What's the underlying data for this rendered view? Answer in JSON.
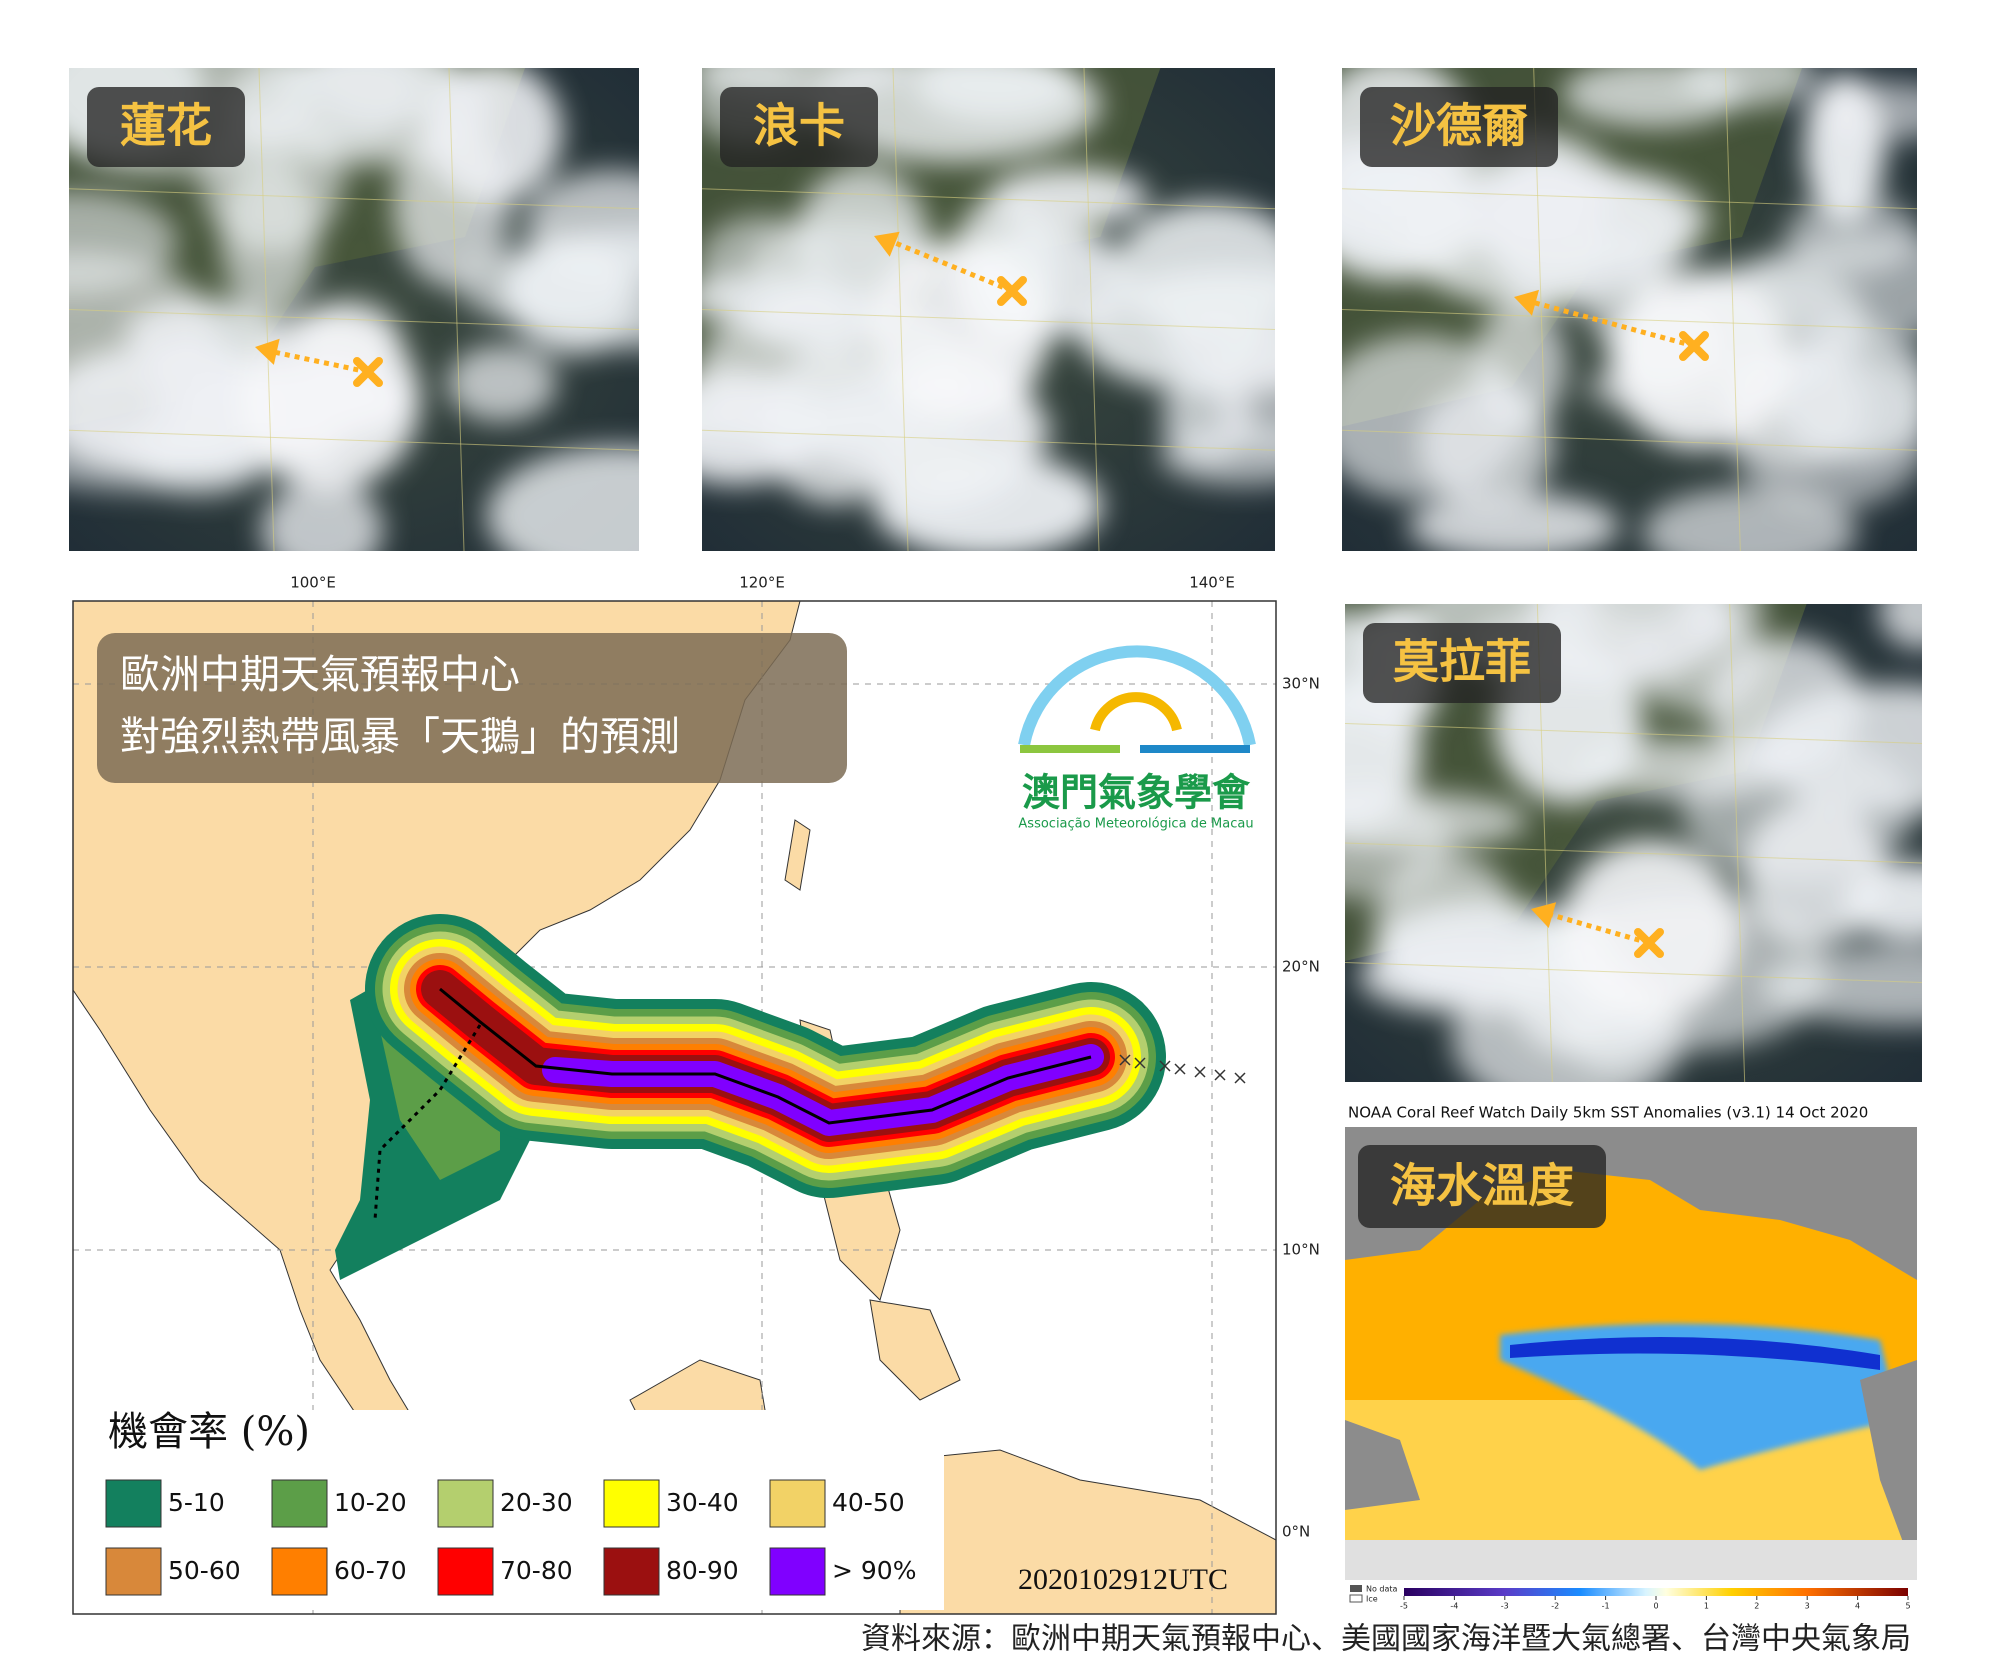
{
  "panels": [
    {
      "label": "蓮花"
    },
    {
      "label": "浪卡"
    },
    {
      "label": "沙德爾"
    },
    {
      "label": "莫拉菲"
    }
  ],
  "map": {
    "title_lines": [
      "歐洲中期天氣預報中心",
      "對強烈熱帶風暴「天鵝」的預測"
    ],
    "lon_labels": [
      "100°E",
      "120°E",
      "140°E"
    ],
    "lat_labels": [
      "30°N",
      "20°N",
      "10°N",
      "0°N"
    ],
    "legend_title": "機會率 (%)",
    "legend": [
      {
        "label": "5-10",
        "color": "#13805e"
      },
      {
        "label": "10-20",
        "color": "#5c9e48"
      },
      {
        "label": "20-30",
        "color": "#b4cf6e"
      },
      {
        "label": "30-40",
        "color": "#ffff00"
      },
      {
        "label": "40-50",
        "color": "#f2d266"
      },
      {
        "label": "50-60",
        "color": "#d8883a"
      },
      {
        "label": "60-70",
        "color": "#ff7f00"
      },
      {
        "label": "70-80",
        "color": "#ff0000"
      },
      {
        "label": "80-90",
        "color": "#9b1010"
      },
      {
        "label": "> 90%",
        "color": "#8000ff"
      }
    ],
    "timestamp": "2020102912UTC"
  },
  "logo": {
    "name": "澳門氣象學會",
    "subtitle": "Associação Meteorológica de Macau"
  },
  "sst": {
    "caption": "NOAA Coral Reef Watch Daily 5km SST Anomalies  (v3.1)   14 Oct 2020",
    "label": "海水溫度",
    "no_data": "No data",
    "ice": "Ice",
    "colorbar_ticks": [
      -5,
      -4,
      -3,
      -2,
      -1,
      0,
      1,
      2,
      3,
      4,
      5
    ]
  },
  "source": "資料來源：歐洲中期天氣預報中心、美國國家海洋暨大氣總署、台灣中央氣象局"
}
